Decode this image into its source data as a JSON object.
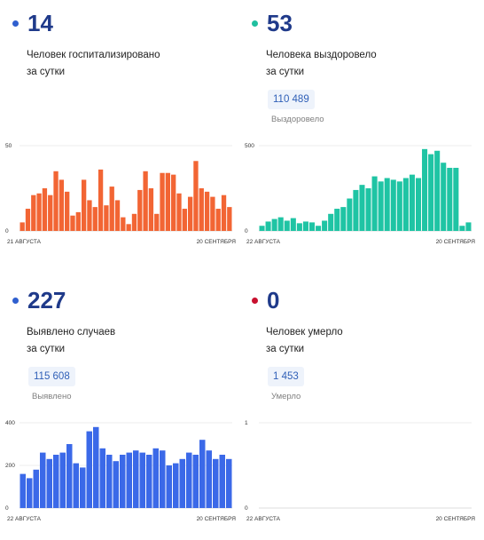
{
  "panels": [
    {
      "number": "14",
      "dot_color": "#2f5fcf",
      "desc": [
        "Человек госпитализировано",
        "за сутки"
      ],
      "chart_data": {
        "type": "bar",
        "color": "#f26534",
        "y_ticks": [
          "50",
          "0"
        ],
        "ylim": [
          0,
          50
        ],
        "x_start": "21 АВГУСТА",
        "x_end": "20 СЕНТЯБРЯ",
        "values": [
          5,
          13,
          21,
          22,
          25,
          21,
          35,
          30,
          23,
          9,
          11,
          30,
          18,
          14,
          36,
          15,
          26,
          18,
          8,
          4,
          10,
          24,
          35,
          25,
          10,
          34,
          34,
          33,
          22,
          13,
          20,
          41,
          25,
          23,
          20,
          13,
          21,
          14
        ]
      }
    },
    {
      "number": "53",
      "dot_color": "#1fbf9f",
      "desc": [
        "Человека выздоровело",
        "за сутки"
      ],
      "total": "110 489",
      "total_label": "Выздоровело",
      "chart_data": {
        "type": "bar",
        "color": "#1fc4a4",
        "y_ticks": [
          "500",
          "0"
        ],
        "ylim": [
          0,
          500
        ],
        "x_start": "22 АВГУСТА",
        "x_end": "20 СЕНТЯБРЯ",
        "values": [
          30,
          55,
          70,
          80,
          60,
          75,
          45,
          55,
          50,
          30,
          60,
          100,
          130,
          140,
          190,
          240,
          270,
          250,
          320,
          290,
          310,
          300,
          290,
          310,
          330,
          310,
          480,
          450,
          470,
          400,
          370,
          370,
          30,
          50
        ]
      }
    },
    {
      "number": "227",
      "dot_color": "#2f5fcf",
      "desc": [
        "Выявлено случаев",
        "за сутки"
      ],
      "total": "115 608",
      "total_label": "Выявлено",
      "chart_data": {
        "type": "bar",
        "color": "#3b69e8",
        "y_ticks": [
          "400",
          "200",
          "0"
        ],
        "ylim": [
          0,
          400
        ],
        "x_start": "22 АВГУСТА",
        "x_end": "20 СЕНТЯБРЯ",
        "values": [
          160,
          140,
          180,
          260,
          230,
          250,
          260,
          300,
          210,
          190,
          360,
          380,
          280,
          250,
          220,
          250,
          260,
          270,
          260,
          250,
          280,
          270,
          200,
          210,
          230,
          260,
          250,
          320,
          270,
          230,
          250,
          230
        ]
      }
    },
    {
      "number": "0",
      "dot_color": "#c8102e",
      "desc": [
        "Человек умерло",
        "за сутки"
      ],
      "total": "1 453",
      "total_label": "Умерло",
      "chart_data": {
        "type": "bar",
        "color": "#c8102e",
        "y_ticks": [
          "1",
          "0"
        ],
        "ylim": [
          0,
          1
        ],
        "x_start": "22 АВГУСТА",
        "x_end": "20 СЕНТЯБРЯ",
        "values": []
      }
    }
  ]
}
